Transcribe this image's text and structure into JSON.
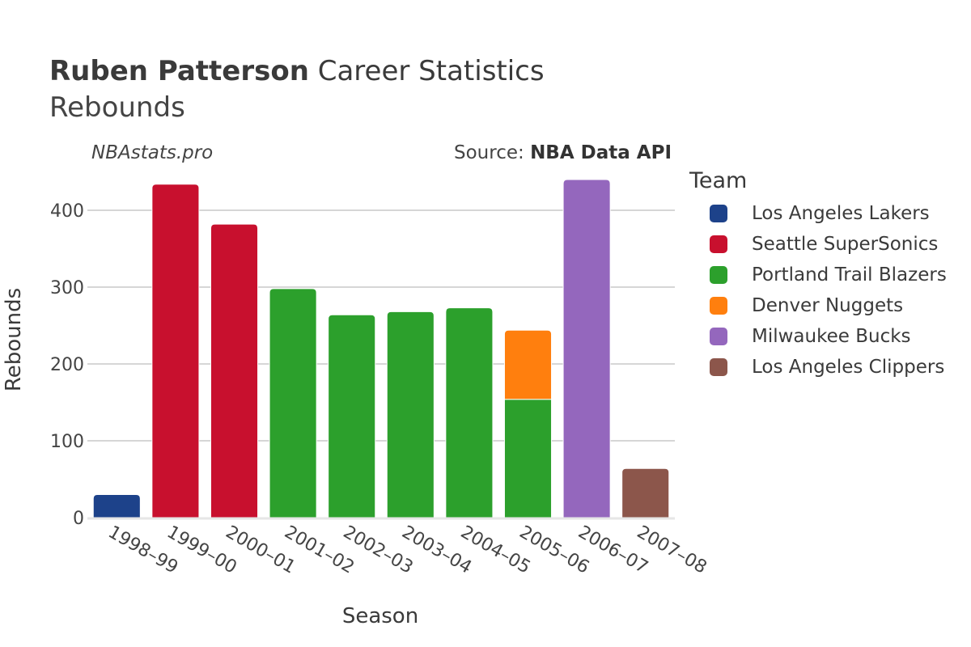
{
  "header": {
    "player_name": "Ruben Patterson",
    "title_rest": "Career Statistics",
    "subtitle": "Rebounds",
    "watermark": "NBAstats.pro",
    "source_prefix": "Source: ",
    "source_name": "NBA Data API"
  },
  "legend": {
    "title": "Team",
    "items": [
      {
        "label": "Los Angeles Lakers",
        "color": "#1d428a"
      },
      {
        "label": "Seattle SuperSonics",
        "color": "#c8102e"
      },
      {
        "label": "Portland Trail Blazers",
        "color": "#2ca02c"
      },
      {
        "label": "Denver Nuggets",
        "color": "#ff7f0e"
      },
      {
        "label": "Milwaukee Bucks",
        "color": "#9467bd"
      },
      {
        "label": "Los Angeles Clippers",
        "color": "#8c564b"
      }
    ]
  },
  "chart_data": {
    "type": "bar",
    "stacked": true,
    "xlabel": "Season",
    "ylabel": "Rebounds",
    "ylim": [
      0,
      460
    ],
    "yticks": [
      0,
      100,
      200,
      300,
      400
    ],
    "grid": true,
    "legend_position": "right",
    "categories": [
      "1998–99",
      "1999–00",
      "2000–01",
      "2001–02",
      "2002–03",
      "2003–04",
      "2004–05",
      "2005–06",
      "2006–07",
      "2007–08"
    ],
    "series": [
      {
        "name": "Los Angeles Lakers",
        "color": "#1d428a",
        "values": [
          30,
          0,
          0,
          0,
          0,
          0,
          0,
          0,
          0,
          0
        ]
      },
      {
        "name": "Seattle SuperSonics",
        "color": "#c8102e",
        "values": [
          0,
          434,
          382,
          0,
          0,
          0,
          0,
          0,
          0,
          0
        ]
      },
      {
        "name": "Portland Trail Blazers",
        "color": "#2ca02c",
        "values": [
          0,
          0,
          0,
          298,
          264,
          268,
          273,
          154,
          0,
          0
        ]
      },
      {
        "name": "Denver Nuggets",
        "color": "#ff7f0e",
        "values": [
          0,
          0,
          0,
          0,
          0,
          0,
          0,
          90,
          0,
          0
        ]
      },
      {
        "name": "Milwaukee Bucks",
        "color": "#9467bd",
        "values": [
          0,
          0,
          0,
          0,
          0,
          0,
          0,
          0,
          440,
          0
        ]
      },
      {
        "name": "Los Angeles Clippers",
        "color": "#8c564b",
        "values": [
          0,
          0,
          0,
          0,
          0,
          0,
          0,
          0,
          0,
          64
        ]
      }
    ]
  }
}
